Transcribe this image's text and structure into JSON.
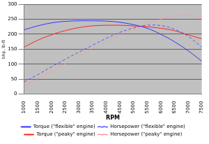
{
  "chart_data": {
    "type": "line",
    "x_label": "RPM",
    "y_label": "bhp, lb-ft",
    "categories": [
      1000,
      1500,
      2000,
      2500,
      3000,
      3500,
      4000,
      4500,
      5000,
      5500,
      6000,
      6500,
      7000,
      7500
    ],
    "series": [
      {
        "name": "Torque (\"flexible\" engine)",
        "color": "#3333ff",
        "line_style": "solid",
        "values": [
          215,
          228,
          238,
          243,
          245,
          245,
          244,
          240,
          232,
          220,
          200,
          175,
          145,
          110
        ]
      },
      {
        "name": "Horsepower (\"flexible\" engine)",
        "color": "#5555ff",
        "line_style": "dashed",
        "values": [
          41,
          65,
          91,
          116,
          140,
          163,
          186,
          206,
          221,
          230,
          229,
          217,
          193,
          157
        ]
      },
      {
        "name": "Torque (\"peaky\" engine)",
        "color": "#ff2222",
        "line_style": "solid",
        "values": [
          157,
          180,
          198,
          212,
          222,
          228,
          230,
          230,
          228,
          225,
          220,
          212,
          198,
          185
        ]
      },
      {
        "name": "Horsepower (\"peaky\" engine)",
        "color": "#ff9999",
        "line_style": "dashed",
        "values": [
          30,
          51,
          75,
          101,
          127,
          152,
          175,
          197,
          217,
          236,
          251,
          262,
          264,
          258
        ]
      }
    ],
    "ylim": [
      0,
      300
    ],
    "yticks": [
      0,
      50,
      100,
      150,
      200,
      250,
      300
    ],
    "grid": true,
    "legend": "bottom"
  }
}
